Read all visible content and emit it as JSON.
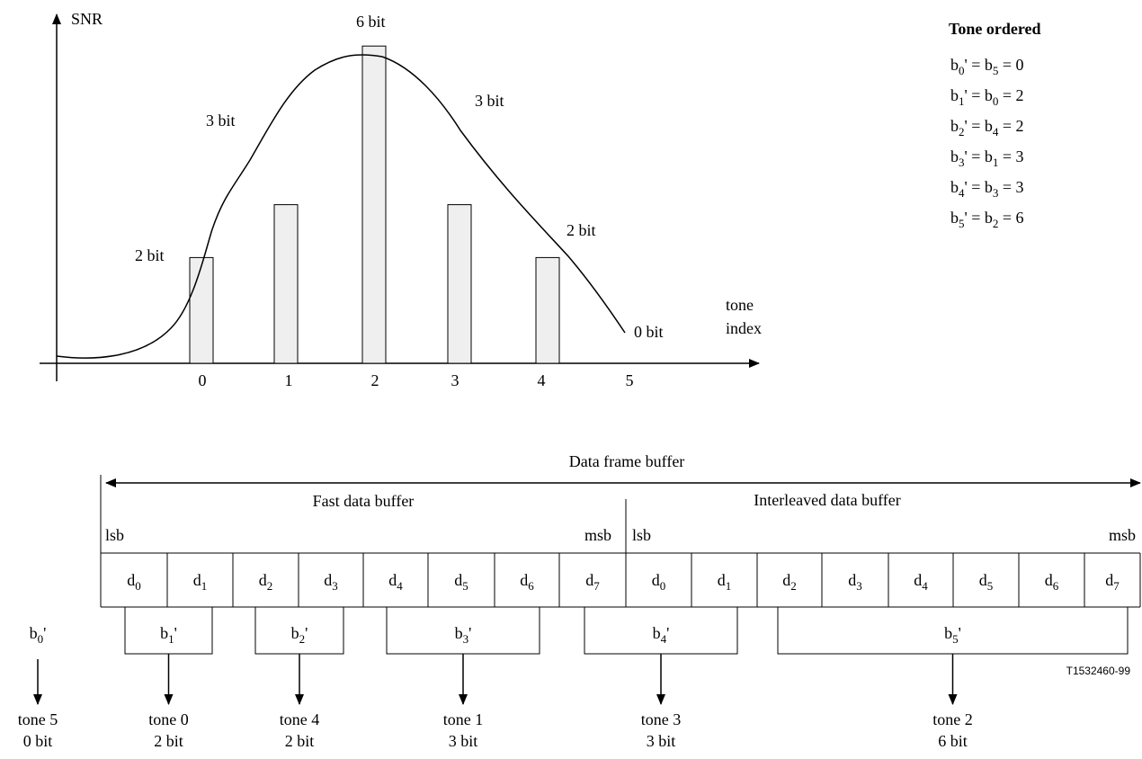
{
  "chart": {
    "y_axis_label": "SNR",
    "x_axis_label_line1": "tone",
    "x_axis_label_line2": "index",
    "x_ticks": [
      "0",
      "1",
      "2",
      "3",
      "4",
      "5"
    ],
    "bits": [
      2,
      3,
      6,
      3,
      2,
      0
    ],
    "bit_labels": [
      "2 bit",
      "3 bit",
      "6 bit",
      "3 bit",
      "2 bit",
      "0 bit"
    ]
  },
  "tone_ordered": {
    "title": "Tone ordered",
    "rows": [
      {
        "lhs_main": "b",
        "lhs_sub": "0",
        "rhs_main": "b",
        "rhs_sub": "5",
        "value": "0"
      },
      {
        "lhs_main": "b",
        "lhs_sub": "1",
        "rhs_main": "b",
        "rhs_sub": "0",
        "value": "2"
      },
      {
        "lhs_main": "b",
        "lhs_sub": "2",
        "rhs_main": "b",
        "rhs_sub": "4",
        "value": "2"
      },
      {
        "lhs_main": "b",
        "lhs_sub": "3",
        "rhs_main": "b",
        "rhs_sub": "1",
        "value": "3"
      },
      {
        "lhs_main": "b",
        "lhs_sub": "4",
        "rhs_main": "b",
        "rhs_sub": "3",
        "value": "3"
      },
      {
        "lhs_main": "b",
        "lhs_sub": "5",
        "rhs_main": "b",
        "rhs_sub": "2",
        "value": "6"
      }
    ]
  },
  "buffer": {
    "frame_label": "Data frame buffer",
    "fast_label": "Fast data buffer",
    "interleaved_label": "Interleaved data buffer",
    "lsb": "lsb",
    "msb": "msb",
    "fast_cells": [
      "0",
      "1",
      "2",
      "3",
      "4",
      "5",
      "6",
      "7"
    ],
    "interleaved_cells": [
      "0",
      "1",
      "2",
      "3",
      "4",
      "5",
      "6",
      "7"
    ],
    "cell_prefix": "d"
  },
  "groups": [
    {
      "main": "b",
      "sub": "0",
      "tone": "tone 5",
      "bits": "0 bit"
    },
    {
      "main": "b",
      "sub": "1",
      "tone": "tone 0",
      "bits": "2 bit"
    },
    {
      "main": "b",
      "sub": "2",
      "tone": "tone 4",
      "bits": "2 bit"
    },
    {
      "main": "b",
      "sub": "3",
      "tone": "tone 1",
      "bits": "3 bit"
    },
    {
      "main": "b",
      "sub": "4",
      "tone": "tone 3",
      "bits": "3 bit"
    },
    {
      "main": "b",
      "sub": "5",
      "tone": "tone 2",
      "bits": "6 bit"
    }
  ],
  "prime_mark": "'",
  "figure_code": "T1532460-99"
}
